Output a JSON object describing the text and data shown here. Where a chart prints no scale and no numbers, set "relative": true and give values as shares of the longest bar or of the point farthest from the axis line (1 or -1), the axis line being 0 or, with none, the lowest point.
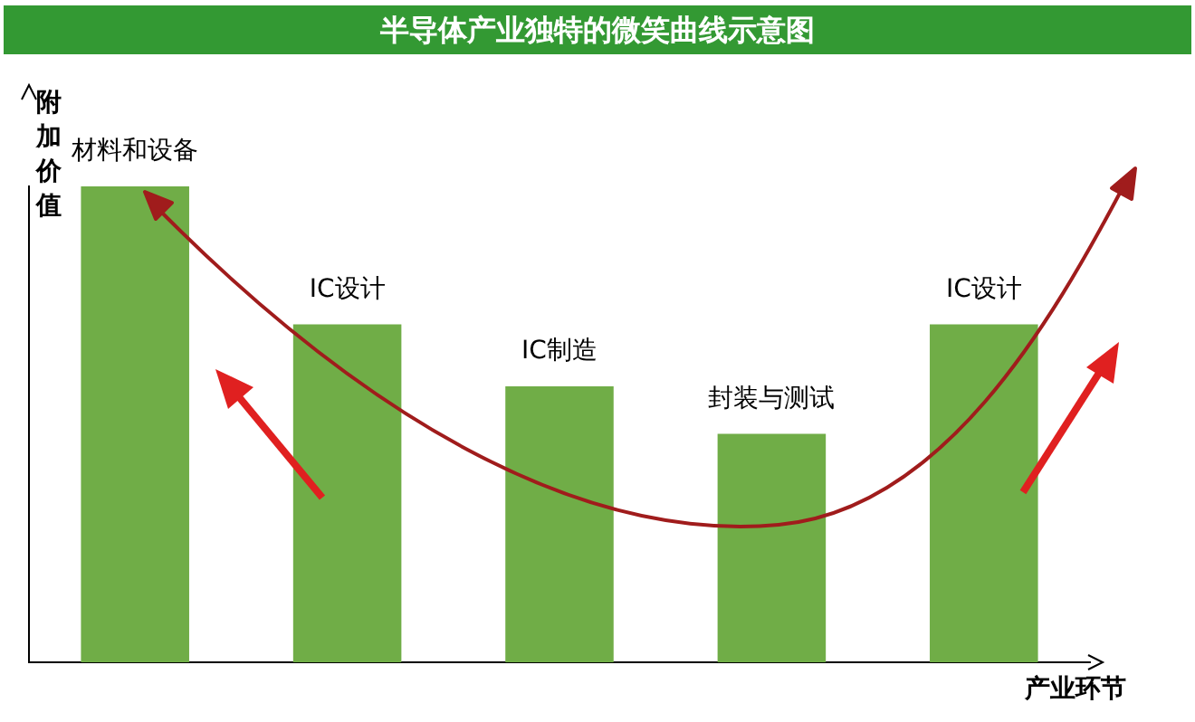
{
  "chart_data": {
    "type": "bar",
    "title": "半导体产业独特的微笑曲线示意图",
    "xlabel": "产业环节",
    "ylabel": "附加价值",
    "categories": [
      "材料和设备",
      "IC设计",
      "IC制造",
      "封装与测试",
      "IC设计"
    ],
    "values": [
      1,
      0.71,
      0.58,
      0.48,
      0.71
    ],
    "color": "#70ad47",
    "relative": true
  }
}
